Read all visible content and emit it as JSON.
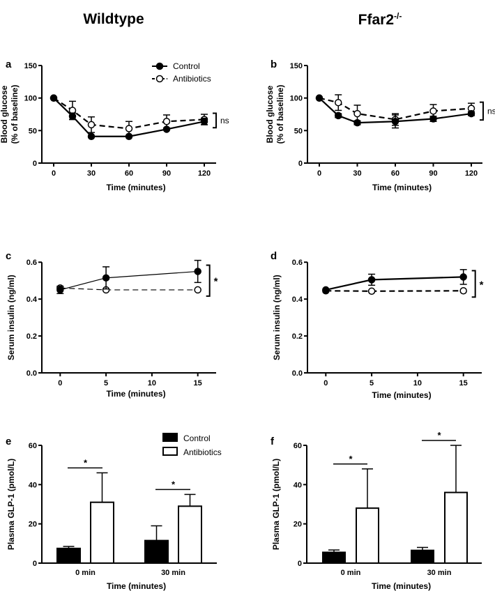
{
  "column_titles": {
    "left": "Wildtype",
    "right_base": "Ffar2",
    "right_sup": "-/-"
  },
  "colors": {
    "ink": "#000000",
    "fill_open": "#ffffff"
  },
  "chart_data": [
    {
      "panel": "a",
      "type": "line",
      "column": "Wildtype",
      "ylabel": [
        "Blood glucose",
        "(% of baseline)"
      ],
      "xlabel": "Time (minutes)",
      "ylim": [
        0,
        150
      ],
      "yticks": [
        0,
        50,
        100,
        150
      ],
      "xlim": [
        0,
        120
      ],
      "xticks": [
        0,
        30,
        60,
        90,
        120
      ],
      "legend": {
        "position": "top-right",
        "entries": [
          "Control",
          "Antibiotics"
        ]
      },
      "significance": "ns",
      "series": [
        {
          "name": "Control",
          "marker": "filled",
          "dash": "solid",
          "x": [
            0,
            15,
            30,
            60,
            90,
            120
          ],
          "y": [
            100,
            72,
            41,
            41,
            52,
            64
          ],
          "err": [
            0,
            5,
            0,
            0,
            0,
            5
          ]
        },
        {
          "name": "Antibiotics",
          "marker": "open",
          "dash": "dashed",
          "x": [
            0,
            15,
            30,
            60,
            90,
            120
          ],
          "y": [
            100,
            81,
            59,
            53,
            64,
            67
          ],
          "err": [
            0,
            14,
            12,
            11,
            10,
            8
          ]
        }
      ]
    },
    {
      "panel": "b",
      "type": "line",
      "column": "Ffar2-/-",
      "ylabel": [
        "Blood glucose",
        "(% of baseline)"
      ],
      "xlabel": "Time (minutes)",
      "ylim": [
        0,
        150
      ],
      "yticks": [
        0,
        50,
        100,
        150
      ],
      "xlim": [
        0,
        120
      ],
      "xticks": [
        0,
        30,
        60,
        90,
        120
      ],
      "significance": "ns",
      "series": [
        {
          "name": "Control",
          "marker": "filled",
          "dash": "solid",
          "x": [
            0,
            15,
            30,
            60,
            90,
            120
          ],
          "y": [
            100,
            73,
            62,
            64,
            68,
            76
          ],
          "err": [
            0,
            3,
            3,
            10,
            4,
            3
          ]
        },
        {
          "name": "Antibiotics",
          "marker": "open",
          "dash": "dashed",
          "x": [
            0,
            15,
            30,
            60,
            90,
            120
          ],
          "y": [
            100,
            93,
            76,
            67,
            80,
            84
          ],
          "err": [
            0,
            12,
            13,
            9,
            10,
            8
          ]
        }
      ]
    },
    {
      "panel": "c",
      "type": "line",
      "column": "Wildtype",
      "ylabel": [
        "Serum insulin (ng/ml)"
      ],
      "xlabel": "Time (minutes)",
      "ylim": [
        0,
        0.65
      ],
      "yticks": [
        0.0,
        0.2,
        0.4,
        0.6
      ],
      "ytick_labels": [
        "0.0",
        "0.2",
        "0.4",
        "0.6"
      ],
      "xlim": [
        -2,
        17
      ],
      "xticks": [
        0,
        5,
        10,
        15
      ],
      "significance": "*",
      "series": [
        {
          "name": "Control",
          "marker": "filled",
          "dash": "solid",
          "x": [
            0,
            5,
            15
          ],
          "y": [
            0.45,
            0.515,
            0.55
          ],
          "err": [
            0.02,
            0.06,
            0.06
          ]
        },
        {
          "name": "Antibiotics",
          "marker": "open",
          "dash": "dashed",
          "x": [
            0,
            5,
            15
          ],
          "y": [
            0.46,
            0.45,
            0.45
          ],
          "err": [
            0,
            0,
            0
          ]
        }
      ]
    },
    {
      "panel": "d",
      "type": "line",
      "column": "Ffar2-/-",
      "ylabel": [
        "Serum insulin (ng/ml)"
      ],
      "xlabel": "Time (minutes)",
      "ylim": [
        0,
        0.65
      ],
      "yticks": [
        0.0,
        0.2,
        0.4,
        0.6
      ],
      "ytick_labels": [
        "0.0",
        "0.2",
        "0.4",
        "0.6"
      ],
      "xlim": [
        -2,
        17
      ],
      "xticks": [
        0,
        5,
        10,
        15
      ],
      "significance": "*",
      "series": [
        {
          "name": "Control",
          "marker": "filled",
          "dash": "solid",
          "x": [
            0,
            5,
            15
          ],
          "y": [
            0.45,
            0.505,
            0.52
          ],
          "err": [
            0,
            0.03,
            0.04
          ]
        },
        {
          "name": "Antibiotics",
          "marker": "open",
          "dash": "dashed",
          "x": [
            0,
            5,
            15
          ],
          "y": [
            0.445,
            0.443,
            0.445
          ],
          "err": [
            0,
            0,
            0
          ]
        }
      ]
    },
    {
      "panel": "e",
      "type": "bar",
      "column": "Wildtype",
      "ylabel": [
        "Plasma GLP-1 (pmol/L)"
      ],
      "xlabel": "Time (minutes)",
      "ylim": [
        0,
        60
      ],
      "yticks": [
        0,
        20,
        40,
        60
      ],
      "categories": [
        "0 min",
        "30 min"
      ],
      "legend": {
        "position": "top-right",
        "entries": [
          "Control",
          "Antibiotics"
        ]
      },
      "significance": [
        "*",
        "*"
      ],
      "series": [
        {
          "name": "Control",
          "fill": "filled",
          "values": [
            7.5,
            11.5
          ],
          "err": [
            1,
            7.5
          ]
        },
        {
          "name": "Antibiotics",
          "fill": "open",
          "values": [
            31,
            29
          ],
          "err": [
            15,
            6
          ]
        }
      ]
    },
    {
      "panel": "f",
      "type": "bar",
      "column": "Ffar2-/-",
      "ylabel": [
        "Plasma GLP-1 (pmol/L)"
      ],
      "xlabel": "Time (minutes)",
      "ylim": [
        0,
        60
      ],
      "yticks": [
        0,
        20,
        40,
        60
      ],
      "categories": [
        "0 min",
        "30 min"
      ],
      "significance": [
        "*",
        "*"
      ],
      "series": [
        {
          "name": "Control",
          "fill": "filled",
          "values": [
            5.5,
            6.5
          ],
          "err": [
            1.2,
            1.5
          ]
        },
        {
          "name": "Antibiotics",
          "fill": "open",
          "values": [
            28,
            36
          ],
          "err": [
            20,
            24
          ]
        }
      ]
    }
  ]
}
